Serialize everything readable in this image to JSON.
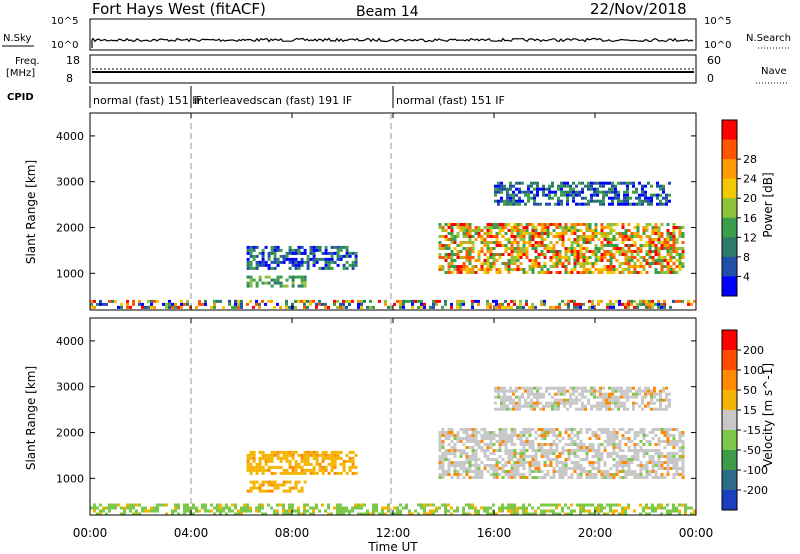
{
  "header": {
    "title": "Fort Hays West (fitACF)",
    "beam": "Beam 14",
    "date": "22/Nov/2018"
  },
  "strips": {
    "nsky": {
      "label": "N.Sky",
      "ticks": [
        "10^5",
        "10^0"
      ]
    },
    "nsearch": {
      "label": "N.Search",
      "ticks": [
        "10^5",
        "10^0"
      ]
    },
    "freq": {
      "label_line1": "Freq.",
      "label_line2": "[MHz]",
      "ticks": [
        "18",
        "8"
      ]
    },
    "nave": {
      "label": "Nave",
      "ticks": [
        "60",
        "0"
      ]
    },
    "cpid": {
      "label": "CPID"
    }
  },
  "cpid_segments": [
    {
      "label": "normal (fast) 151 IF",
      "start_hour": 0,
      "end_hour": 4
    },
    {
      "label": "interleavedscan (fast) 191 IF",
      "start_hour": 4,
      "end_hour": 12
    },
    {
      "label": "normal (fast) 151 IF",
      "start_hour": 12,
      "end_hour": 24
    }
  ],
  "xaxis": {
    "label": "Time UT",
    "tick_labels": [
      "00:00",
      "04:00",
      "08:00",
      "12:00",
      "16:00",
      "20:00",
      "00:00"
    ]
  },
  "chart_data": [
    {
      "type": "heatmap",
      "name": "power",
      "ylabel": "Slant Range [km]",
      "yticks": [
        1000,
        2000,
        3000,
        4000
      ],
      "ylim": [
        200,
        4500
      ],
      "xlim_hours": [
        0,
        24
      ],
      "colorbar": {
        "label": "Power [dB]",
        "ticks": [
          "4",
          "8",
          "12",
          "16",
          "20",
          "24",
          "28"
        ],
        "colors": [
          "#0000ff",
          "#1f4fa8",
          "#2e7a6a",
          "#3a9e4a",
          "#8ec23c",
          "#f2c800",
          "#ff9900",
          "#ff5500",
          "#ff0000"
        ]
      },
      "regions": [
        {
          "t0": 0,
          "t1": 24,
          "r0": 250,
          "r1": 420,
          "level": "mixed"
        },
        {
          "t0": 6.2,
          "t1": 10.5,
          "r0": 1100,
          "r1": 1600,
          "level": "low"
        },
        {
          "t0": 6.2,
          "t1": 8.5,
          "r0": 750,
          "r1": 950,
          "level": "mid"
        },
        {
          "t0": 13.8,
          "t1": 23.5,
          "r0": 1000,
          "r1": 2100,
          "level": "high"
        },
        {
          "t0": 16,
          "t1": 23,
          "r0": 2500,
          "r1": 3000,
          "level": "low"
        }
      ]
    },
    {
      "type": "heatmap",
      "name": "velocity",
      "ylabel": "Slant Range [km]",
      "yticks": [
        1000,
        2000,
        3000,
        4000
      ],
      "ylim": [
        200,
        4500
      ],
      "xlim_hours": [
        0,
        24
      ],
      "colorbar": {
        "label": "Velocity [m s^-1]",
        "ticks": [
          "200",
          "100",
          "50",
          "15",
          "-15",
          "-50",
          "-100",
          "-200"
        ],
        "colors": [
          "#1a3fbf",
          "#2e6a8a",
          "#3f9a4a",
          "#7cc94a",
          "#c8c8c8",
          "#f5b400",
          "#ff8a00",
          "#ff4a00",
          "#ff0000"
        ]
      },
      "regions": [
        {
          "t0": 0,
          "t1": 24,
          "r0": 250,
          "r1": 450,
          "level": "green"
        },
        {
          "t0": 6.2,
          "t1": 10.5,
          "r0": 1100,
          "r1": 1600,
          "level": "yellow"
        },
        {
          "t0": 6.2,
          "t1": 8.5,
          "r0": 750,
          "r1": 950,
          "level": "yellow"
        },
        {
          "t0": 13.8,
          "t1": 23.5,
          "r0": 1000,
          "r1": 2100,
          "level": "gray"
        },
        {
          "t0": 16,
          "t1": 23,
          "r0": 2500,
          "r1": 3000,
          "level": "gray"
        }
      ]
    }
  ]
}
